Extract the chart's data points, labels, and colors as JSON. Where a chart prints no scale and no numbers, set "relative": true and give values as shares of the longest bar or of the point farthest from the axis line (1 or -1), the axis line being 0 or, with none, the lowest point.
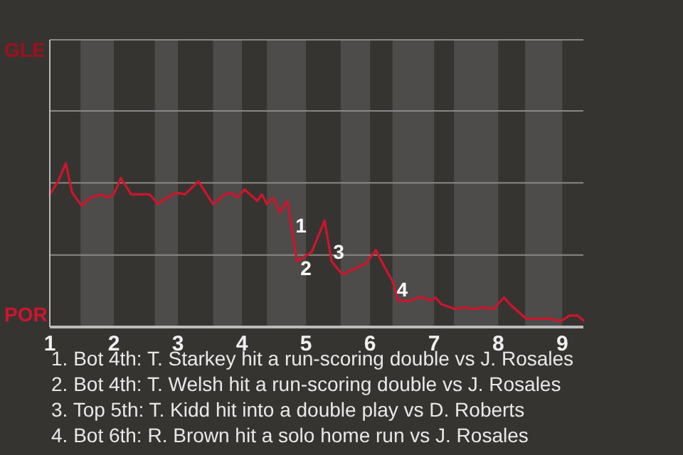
{
  "chart_data": {
    "type": "line",
    "relative": true,
    "x": [
      1.0,
      1.13,
      1.25,
      1.35,
      1.5,
      1.63,
      1.8,
      1.9,
      2.0,
      2.11,
      2.27,
      2.56,
      2.69,
      2.82,
      2.98,
      3.11,
      3.32,
      3.55,
      3.73,
      3.84,
      3.93,
      4.04,
      4.24,
      4.31,
      4.39,
      4.49,
      4.59,
      4.71,
      4.86,
      5.09,
      5.29,
      5.4,
      5.57,
      5.94,
      6.09,
      6.22,
      6.35,
      6.44,
      6.64,
      6.73,
      6.85,
      6.93,
      7.02,
      7.11,
      7.33,
      7.49,
      7.6,
      7.78,
      7.93,
      8.09,
      8.18,
      8.44,
      8.82,
      8.91,
      9.0,
      9.11,
      9.24,
      9.33
    ],
    "series": [
      {
        "color": "#d0142c",
        "values": [
          0.81,
          0.89,
          1,
          0.82,
          0.74,
          0.79,
          0.81,
          0.79,
          0.81,
          0.91,
          0.81,
          0.81,
          0.75,
          0.79,
          0.82,
          0.81,
          0.89,
          0.75,
          0.81,
          0.82,
          0.79,
          0.84,
          0.77,
          0.81,
          0.75,
          0.79,
          0.7,
          0.77,
          0.4,
          0.46,
          0.65,
          0.4,
          0.32,
          0.39,
          0.47,
          0.37,
          0.28,
          0.16,
          0.16,
          0.18,
          0.18,
          0.16,
          0.18,
          0.14,
          0.11,
          0.12,
          0.11,
          0.12,
          0.11,
          0.18,
          0.14,
          0.05,
          0.05,
          0.04,
          0.04,
          0.07,
          0.07,
          0.04
        ]
      }
    ],
    "xlim": [
      1,
      9.33
    ],
    "xticks": [
      1,
      2,
      3,
      4,
      5,
      6,
      7,
      8,
      9
    ],
    "ref_lines": [
      {
        "axis": "y",
        "value": 0.44,
        "color": "#8a8886"
      },
      {
        "axis": "y",
        "value": 0.88,
        "color": "#8a8886"
      },
      {
        "axis": "y",
        "value": 1.32,
        "color": "#8a8886"
      }
    ],
    "bands": [
      {
        "axis": "x",
        "from": 1.48,
        "to": 2.0,
        "color": "#4d4c4a"
      },
      {
        "axis": "x",
        "from": 2.64,
        "to": 3.0,
        "color": "#4d4c4a"
      },
      {
        "axis": "x",
        "from": 3.55,
        "to": 4.0,
        "color": "#4d4c4a"
      },
      {
        "axis": "x",
        "from": 4.39,
        "to": 5.0,
        "color": "#4d4c4a"
      },
      {
        "axis": "x",
        "from": 5.54,
        "to": 6.0,
        "color": "#4d4c4a"
      },
      {
        "axis": "x",
        "from": 6.35,
        "to": 7.0,
        "color": "#4d4c4a"
      },
      {
        "axis": "x",
        "from": 7.31,
        "to": 8.0,
        "color": "#4d4c4a"
      },
      {
        "axis": "x",
        "from": 8.42,
        "to": 9.0,
        "color": "#4d4c4a"
      }
    ],
    "annotations": [
      "GLE",
      "POR",
      {
        "text": "1",
        "x": 4.92,
        "y": 0.62
      },
      {
        "text": "2",
        "x": 5.0,
        "y": 0.36
      },
      {
        "text": "3",
        "x": 5.51,
        "y": 0.46
      },
      {
        "text": "4",
        "x": 6.5,
        "y": 0.23
      },
      "1. Bot 4th: T. Starkey hit a run-scoring double vs J. Rosales",
      "2. Bot 4th: T. Welsh hit a run-scoring double vs J. Rosales",
      "3. Top 5th: T. Kidd hit into a double play vs D. Roberts",
      "4. Bot 6th: R. Brown hit a solo home run vs J. Rosales"
    ]
  }
}
